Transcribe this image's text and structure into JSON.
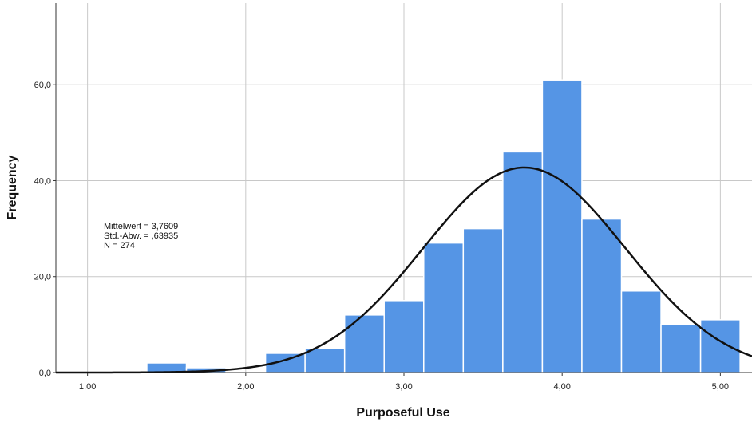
{
  "chart_data": {
    "type": "bar",
    "subtype": "histogram",
    "xlabel": "Purposeful Use",
    "ylabel": "Frequency",
    "x_ticks": [
      {
        "value": 1.0,
        "label": "1,00"
      },
      {
        "value": 2.0,
        "label": "2,00"
      },
      {
        "value": 3.0,
        "label": "3,00"
      },
      {
        "value": 4.0,
        "label": "4,00"
      },
      {
        "value": 5.0,
        "label": "5,00"
      }
    ],
    "y_ticks": [
      {
        "value": 0,
        "label": "0,0"
      },
      {
        "value": 20,
        "label": "20,0"
      },
      {
        "value": 40,
        "label": "40,0"
      },
      {
        "value": 60,
        "label": "60,0"
      }
    ],
    "xlim": [
      0.8,
      5.2
    ],
    "ylim": [
      0,
      77
    ],
    "grid": true,
    "bins": [
      {
        "start": 1.375,
        "end": 1.625,
        "count": 2
      },
      {
        "start": 1.625,
        "end": 1.875,
        "count": 1
      },
      {
        "start": 1.875,
        "end": 2.125,
        "count": 0
      },
      {
        "start": 2.125,
        "end": 2.375,
        "count": 4
      },
      {
        "start": 2.375,
        "end": 2.625,
        "count": 5
      },
      {
        "start": 2.625,
        "end": 2.875,
        "count": 12
      },
      {
        "start": 2.875,
        "end": 3.125,
        "count": 15
      },
      {
        "start": 3.125,
        "end": 3.375,
        "count": 27
      },
      {
        "start": 3.375,
        "end": 3.625,
        "count": 30
      },
      {
        "start": 3.625,
        "end": 3.875,
        "count": 46
      },
      {
        "start": 3.875,
        "end": 4.125,
        "count": 61
      },
      {
        "start": 4.125,
        "end": 4.375,
        "count": 32
      },
      {
        "start": 4.375,
        "end": 4.625,
        "count": 17
      },
      {
        "start": 4.625,
        "end": 4.875,
        "count": 10
      },
      {
        "start": 4.875,
        "end": 5.125,
        "count": 11
      }
    ],
    "normal_curve": {
      "mean": 3.7609,
      "sd": 0.63935,
      "n": 274,
      "bin_width": 0.25
    },
    "stats_lines": [
      "Mittelwert = 3,7609",
      "Std.-Abw. = ,63935",
      "N = 274"
    ],
    "colors": {
      "bar_fill": "#5595E5",
      "bar_stroke": "#ffffff",
      "curve": "#111111",
      "grid": "#c8c8c8",
      "axis": "#333333"
    }
  }
}
